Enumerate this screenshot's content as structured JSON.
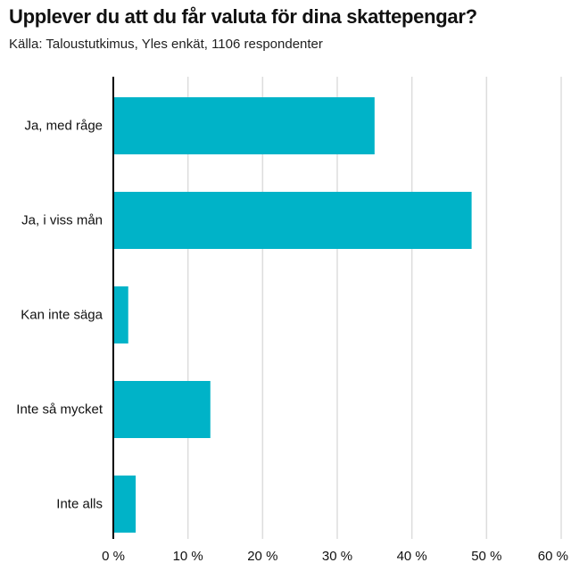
{
  "chart_data": {
    "type": "bar",
    "orientation": "horizontal",
    "title": "Upplever du att du får valuta för dina skattepengar?",
    "subtitle": "Källa: Taloustutkimus, Yles enkät, 1106 respondenter",
    "categories": [
      "Ja, med råge",
      "Ja, i viss mån",
      "Kan inte säga",
      "Inte så mycket",
      "Inte alls"
    ],
    "values": [
      35,
      48,
      2,
      13,
      3
    ],
    "xlim": [
      0,
      60
    ],
    "x_ticks": [
      0,
      10,
      20,
      30,
      40,
      50,
      60
    ],
    "x_tick_labels": [
      "0 %",
      "10 %",
      "20 %",
      "30 %",
      "40 %",
      "50 %",
      "60 %"
    ],
    "grid": "vertical",
    "xlabel": "",
    "ylabel": "",
    "bar_color": "#00b3c8",
    "grid_color": "#dddddd",
    "axis_color": "#000000"
  }
}
